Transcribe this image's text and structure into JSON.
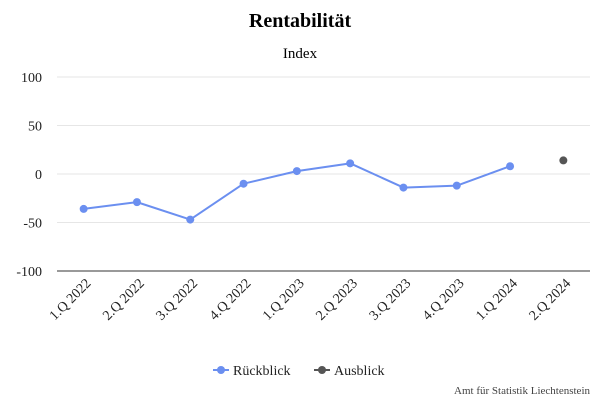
{
  "chart_data": {
    "type": "line",
    "title": "Rentabilität",
    "subtitle": "Index",
    "categories": [
      "1.Q 2022",
      "2.Q 2022",
      "3.Q 2022",
      "4.Q 2022",
      "1.Q 2023",
      "2.Q 2023",
      "3.Q 2023",
      "4.Q 2023",
      "1.Q 2024",
      "2.Q 2024"
    ],
    "y_ticks": [
      "100",
      "50",
      "0",
      "-50",
      "-100"
    ],
    "ylim": [
      -100,
      100
    ],
    "grid": true,
    "legend_placement": "bottom",
    "series": [
      {
        "name": "Rückblick",
        "color": "#6b8ff0",
        "values": [
          -36,
          -29,
          -47,
          -10,
          3,
          11,
          -14,
          -12,
          8,
          null
        ]
      },
      {
        "name": "Ausblick",
        "color": "#555555",
        "values": [
          null,
          null,
          null,
          null,
          null,
          null,
          null,
          null,
          null,
          14
        ]
      }
    ],
    "credit": "Amt für Statistik Liechtenstein"
  }
}
